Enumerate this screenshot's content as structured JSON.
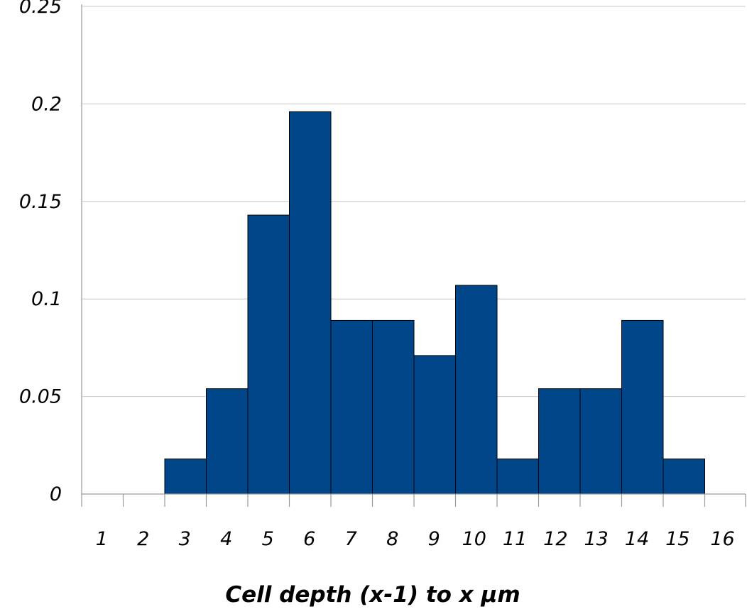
{
  "chart_data": {
    "type": "bar",
    "categories": [
      "1",
      "2",
      "3",
      "4",
      "5",
      "6",
      "7",
      "8",
      "9",
      "10",
      "11",
      "12",
      "13",
      "14",
      "15",
      "16"
    ],
    "values": [
      0,
      0,
      0.018,
      0.054,
      0.143,
      0.196,
      0.089,
      0.089,
      0.071,
      0.107,
      0.018,
      0.054,
      0.054,
      0.089,
      0.018,
      0
    ],
    "title": "",
    "xlabel": "Cell depth (x-1) to x µm",
    "ylabel": "",
    "ylim": [
      0,
      0.25
    ],
    "yticks": [
      "0",
      "0.05",
      "0.1",
      "0.15",
      "0.2",
      "0.25"
    ],
    "grid": true,
    "legend": "none",
    "bar_color": "#02468a"
  }
}
